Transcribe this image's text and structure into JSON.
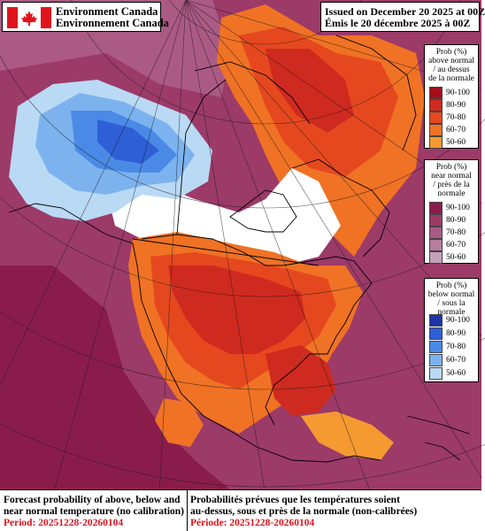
{
  "header": {
    "org_en": "Environment Canada",
    "org_fr": "Environnement Canada",
    "issued_en": "Issued on December 20 2025 at 00Z",
    "issued_fr": "Émis le 20 décembre 2025 à 00Z"
  },
  "legend_above": {
    "title_lines": [
      "Prob (%)",
      "above normal",
      "/ au dessus",
      "de la normale"
    ],
    "bins": [
      {
        "label": "90-100",
        "color": "#a50f1b"
      },
      {
        "label": "80-90",
        "color": "#cf2a1f"
      },
      {
        "label": "70-80",
        "color": "#e5481f"
      },
      {
        "label": "60-70",
        "color": "#f07224"
      },
      {
        "label": "50-60",
        "color": "#f59a31"
      }
    ]
  },
  "legend_near": {
    "title_lines": [
      "Prob (%)",
      "near normal",
      "/ près de la",
      "normale"
    ],
    "bins": [
      {
        "label": "90-100",
        "color": "#8a1c4c"
      },
      {
        "label": "80-90",
        "color": "#9c3a68"
      },
      {
        "label": "70-80",
        "color": "#ab5a84"
      },
      {
        "label": "60-70",
        "color": "#b77d9e"
      },
      {
        "label": "50-60",
        "color": "#c59fbb"
      }
    ]
  },
  "legend_below": {
    "title_lines": [
      "Prob (%)",
      "below normal",
      "/ sous la normale"
    ],
    "bins": [
      {
        "label": "90-100",
        "color": "#1f35a8"
      },
      {
        "label": "80-90",
        "color": "#2f5fd6"
      },
      {
        "label": "70-80",
        "color": "#4a8ae6"
      },
      {
        "label": "60-70",
        "color": "#7cb3ee"
      },
      {
        "label": "50-60",
        "color": "#b9d9f5"
      }
    ]
  },
  "footer": {
    "en_line1": "Forecast probability of above, below and",
    "en_line2": "near normal temperature (no calibration)",
    "en_period": "Period: 20251228-20260104",
    "fr_line1": "Probabilités prévues que les températures soient",
    "fr_line2": "au-dessus, sous et près de la normale (non-calibrées)",
    "fr_period": "Période: 20251228-20260104"
  },
  "colors": {
    "ocean_near_normal": "#9c3a68",
    "land_above_core": "#cf2a1f",
    "land_above_edge": "#f07224",
    "below_core": "#2f5fd6",
    "no_signal": "#ffffff",
    "flag_red": "#e0141e",
    "period_red": "#e0141e"
  }
}
